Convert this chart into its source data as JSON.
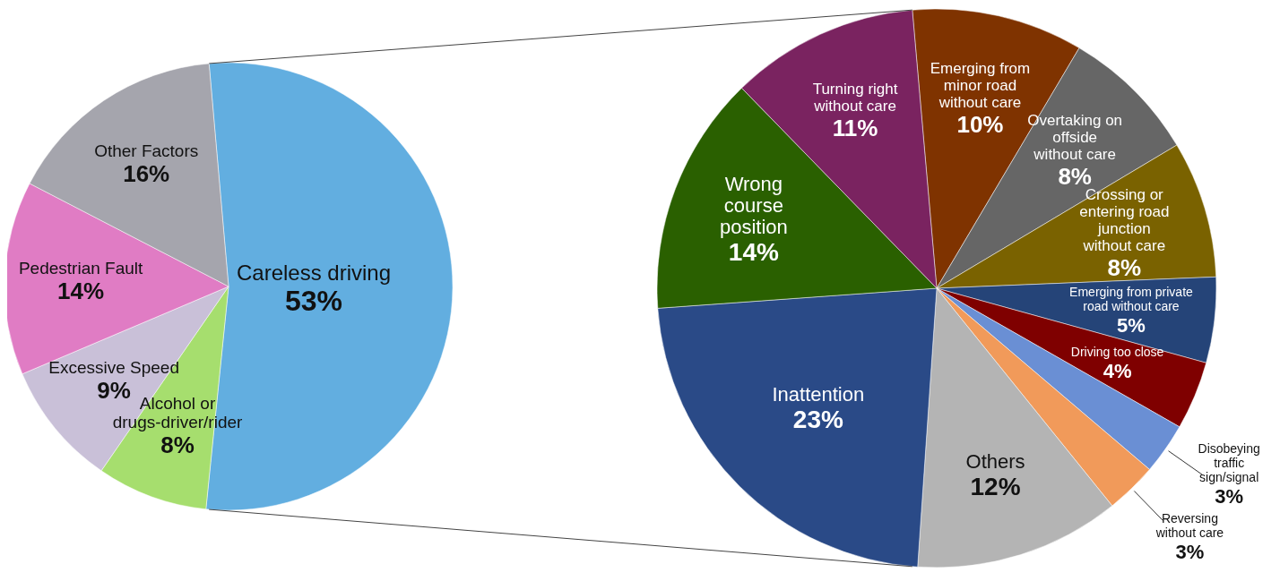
{
  "chart_data": [
    {
      "type": "pie",
      "categories": [
        "Careless driving",
        "Alcohol or drugs-driver/rider",
        "Excessive Speed",
        "Pedestrian Fault",
        "Other Factors"
      ],
      "values": [
        53,
        8,
        9,
        14,
        16
      ],
      "value_labels": [
        "53%",
        "8%",
        "9%",
        "14%",
        "16%"
      ],
      "colors": [
        "#62aee0",
        "#a6de6e",
        "#c9c0d8",
        "#e07cc4",
        "#a5a5ad"
      ]
    },
    {
      "type": "pie",
      "categories": [
        "Emerging from minor road without care",
        "Overtaking on offside without care",
        "Crossing or entering road junction without care",
        "Emerging from private road without care",
        "Driving too close",
        "Disobeying traffic sign/signal",
        "Reversing without care",
        "Others",
        "Inattention",
        "Wrong course position",
        "Turning right without care"
      ],
      "values": [
        10,
        8,
        8,
        5,
        4,
        3,
        3,
        12,
        23,
        14,
        11
      ],
      "value_labels": [
        "10%",
        "8%",
        "8%",
        "5%",
        "4%",
        "3%",
        "3%",
        "12%",
        "23%",
        "14%",
        "11%"
      ],
      "colors": [
        "#7f3300",
        "#666666",
        "#7a6200",
        "#254478",
        "#7f0000",
        "#6a8fd4",
        "#f19a5a",
        "#b4b4b4",
        "#2a4a87",
        "#2a6000",
        "#7a2360"
      ]
    }
  ]
}
